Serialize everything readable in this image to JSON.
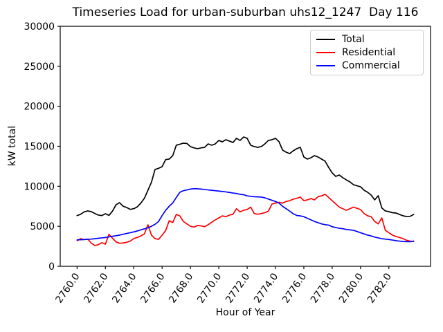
{
  "figure": {
    "title": "Timeseries Load for urban-suburban uhs12_1247  Day 116",
    "xlabel": "Hour of Year",
    "ylabel": "kW total"
  },
  "chart_data": {
    "type": "line",
    "title": "Timeseries Load for urban-suburban uhs12_1247  Day 116",
    "xlabel": "Hour of Year",
    "ylabel": "kW total",
    "xlim": [
      2758.81,
      2784.94
    ],
    "ylim": [
      0,
      30000
    ],
    "grid": false,
    "legend_position": "upper right",
    "xticks": [
      2760.0,
      2762.0,
      2764.0,
      2766.0,
      2768.0,
      2770.0,
      2772.0,
      2774.0,
      2776.0,
      2778.0,
      2780.0,
      2782.0
    ],
    "xtick_labels": [
      "2760.0",
      "2762.0",
      "2764.0",
      "2766.0",
      "2768.0",
      "2770.0",
      "2772.0",
      "2774.0",
      "2776.0",
      "2778.0",
      "2780.0",
      "2782.0"
    ],
    "yticks": [
      0,
      5000,
      10000,
      15000,
      20000,
      25000,
      30000
    ],
    "ytick_labels": [
      "0",
      "5000",
      "10000",
      "15000",
      "20000",
      "25000",
      "30000"
    ],
    "x_start": 2760.0,
    "x_step": 0.25,
    "x": [
      2760.0,
      2760.25,
      2760.5,
      2760.75,
      2761.0,
      2761.25,
      2761.5,
      2761.75,
      2762.0,
      2762.25,
      2762.5,
      2762.75,
      2763.0,
      2763.25,
      2763.5,
      2763.75,
      2764.0,
      2764.25,
      2764.5,
      2764.75,
      2765.0,
      2765.25,
      2765.5,
      2765.75,
      2766.0,
      2766.25,
      2766.5,
      2766.75,
      2767.0,
      2767.25,
      2767.5,
      2767.75,
      2768.0,
      2768.25,
      2768.5,
      2768.75,
      2769.0,
      2769.25,
      2769.5,
      2769.75,
      2770.0,
      2770.25,
      2770.5,
      2770.75,
      2771.0,
      2771.25,
      2771.5,
      2771.75,
      2772.0,
      2772.25,
      2772.5,
      2772.75,
      2773.0,
      2773.25,
      2773.5,
      2773.75,
      2774.0,
      2774.25,
      2774.5,
      2774.75,
      2775.0,
      2775.25,
      2775.5,
      2775.75,
      2776.0,
      2776.25,
      2776.5,
      2776.75,
      2777.0,
      2777.25,
      2777.5,
      2777.75,
      2778.0,
      2778.25,
      2778.5,
      2778.75,
      2779.0,
      2779.25,
      2779.5,
      2779.75,
      2780.0,
      2780.25,
      2780.5,
      2780.75,
      2781.0,
      2781.25,
      2781.5,
      2781.75,
      2782.0,
      2782.25,
      2782.5,
      2782.75,
      2783.0,
      2783.25,
      2783.5,
      2783.75
    ],
    "series": [
      {
        "name": "Total",
        "color": "#000000",
        "values": [
          6340,
          6500,
          6800,
          6920,
          6830,
          6600,
          6400,
          6340,
          6570,
          6360,
          6900,
          7700,
          7950,
          7500,
          7350,
          7115,
          7200,
          7430,
          7900,
          8500,
          9510,
          10520,
          12100,
          12250,
          12450,
          13340,
          13400,
          13830,
          15130,
          15250,
          15390,
          15350,
          14960,
          14800,
          14700,
          14800,
          14870,
          15300,
          15130,
          15300,
          15730,
          15560,
          15820,
          15650,
          15470,
          16000,
          15730,
          16160,
          16000,
          15130,
          14960,
          14870,
          14960,
          15300,
          15730,
          15820,
          16000,
          15560,
          14525,
          14265,
          14090,
          14440,
          14700,
          14870,
          13660,
          13400,
          13570,
          13830,
          13660,
          13400,
          13140,
          12360,
          11670,
          11240,
          11410,
          11070,
          10800,
          10550,
          10200,
          10070,
          9940,
          9510,
          9250,
          8900,
          8300,
          8820,
          7300,
          6920,
          6830,
          6700,
          6660,
          6480,
          6310,
          6220,
          6250,
          6480
        ]
      },
      {
        "name": "Residential",
        "color": "#ff0000",
        "values": [
          3200,
          3450,
          3330,
          3400,
          2900,
          2600,
          2700,
          2950,
          2770,
          4000,
          3500,
          3050,
          2880,
          2920,
          3000,
          3150,
          3460,
          3600,
          3800,
          4050,
          5190,
          3890,
          3460,
          3370,
          3890,
          4470,
          5700,
          5470,
          6480,
          6300,
          5600,
          5300,
          5000,
          4900,
          5100,
          5050,
          4950,
          5200,
          5500,
          5800,
          6050,
          6300,
          6200,
          6400,
          6500,
          7200,
          6800,
          7000,
          7100,
          7400,
          6600,
          6500,
          6600,
          6700,
          6900,
          7780,
          7900,
          8000,
          7900,
          8100,
          8200,
          8390,
          8500,
          8650,
          8210,
          8300,
          8470,
          8300,
          8700,
          8800,
          9000,
          8600,
          8200,
          7800,
          7400,
          7200,
          7000,
          7200,
          7400,
          7250,
          7090,
          6600,
          6310,
          6200,
          5600,
          5300,
          6050,
          4490,
          4200,
          3900,
          3720,
          3600,
          3460,
          3250,
          3150,
          3100
        ]
      },
      {
        "name": "Commercial",
        "color": "#0000ff",
        "values": [
          3300,
          3320,
          3350,
          3380,
          3400,
          3450,
          3500,
          3550,
          3600,
          3680,
          3750,
          3820,
          3900,
          4000,
          4100,
          4200,
          4300,
          4420,
          4550,
          4680,
          4800,
          5000,
          5250,
          5600,
          6340,
          7000,
          7500,
          7925,
          8600,
          9250,
          9450,
          9550,
          9650,
          9700,
          9680,
          9650,
          9600,
          9550,
          9500,
          9450,
          9400,
          9350,
          9300,
          9230,
          9160,
          9100,
          9000,
          8950,
          8800,
          8750,
          8700,
          8680,
          8650,
          8560,
          8400,
          8250,
          8100,
          7900,
          7500,
          7200,
          6900,
          6570,
          6350,
          6300,
          6200,
          6000,
          5800,
          5600,
          5450,
          5300,
          5200,
          5150,
          4950,
          4850,
          4750,
          4700,
          4600,
          4550,
          4500,
          4350,
          4200,
          4050,
          3900,
          3800,
          3650,
          3550,
          3450,
          3400,
          3350,
          3280,
          3200,
          3150,
          3100,
          3080,
          3080,
          3150
        ]
      }
    ]
  }
}
